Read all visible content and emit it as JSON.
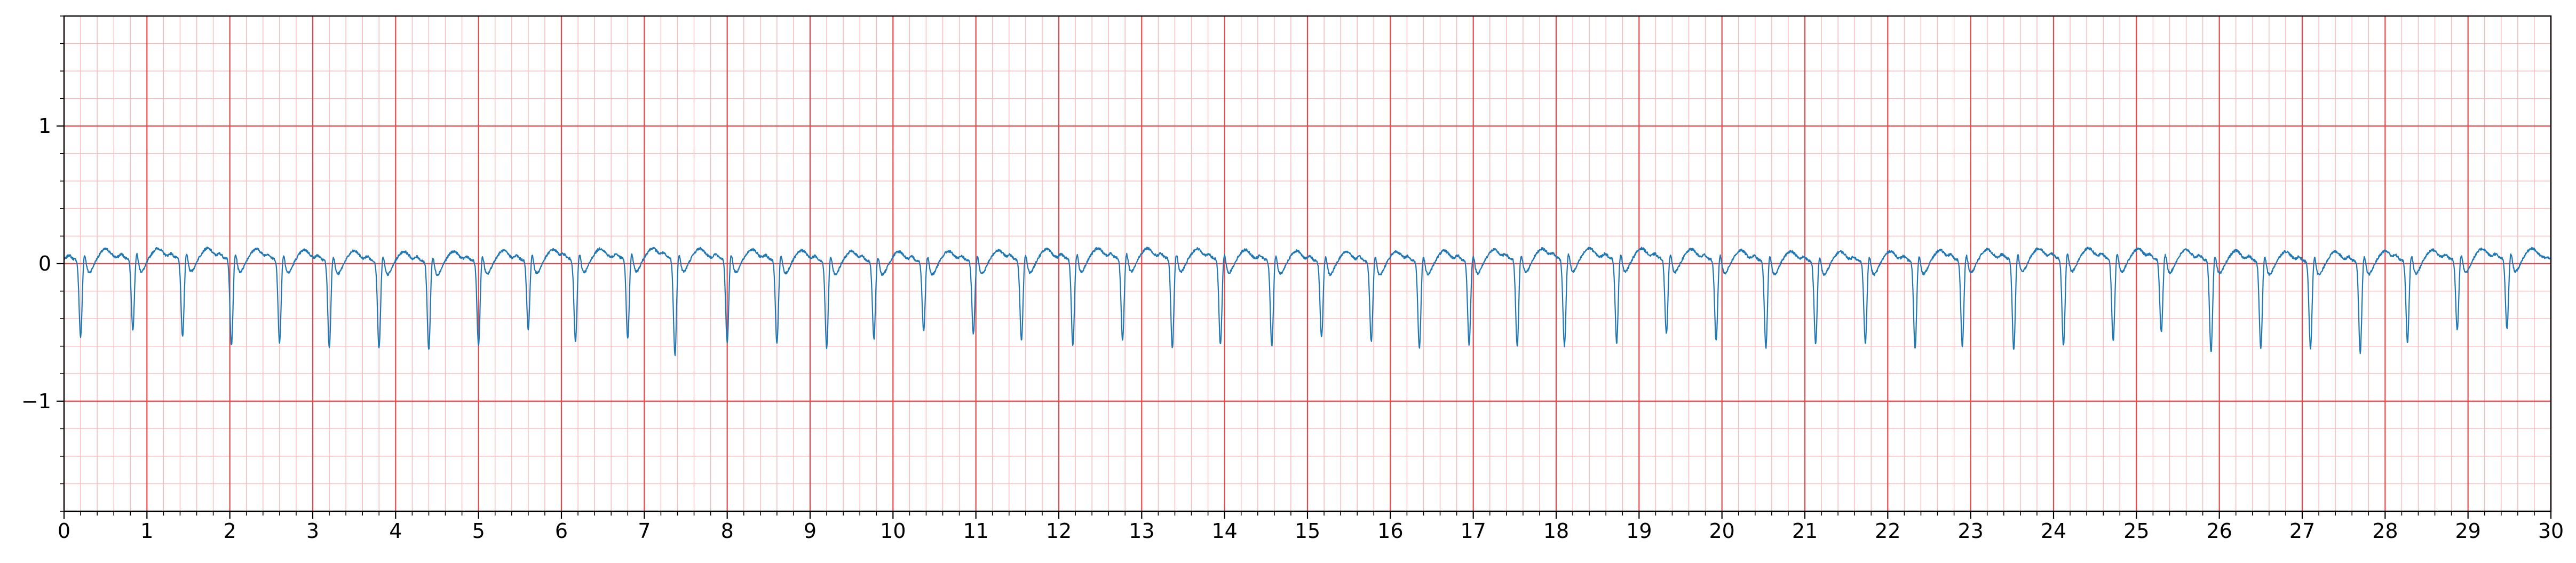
{
  "chart_data": {
    "type": "line",
    "title": "",
    "xlabel": "",
    "ylabel": "",
    "xlim": [
      0,
      30
    ],
    "ylim": [
      -1.8,
      1.8
    ],
    "x_major_step": 1,
    "x_minor_step": 0.2,
    "y_major_step": 1,
    "y_minor_step": 0.2,
    "x_ticks": [
      "0",
      "1",
      "2",
      "3",
      "4",
      "5",
      "6",
      "7",
      "8",
      "9",
      "10",
      "11",
      "12",
      "13",
      "14",
      "15",
      "16",
      "17",
      "18",
      "19",
      "20",
      "21",
      "22",
      "23",
      "24",
      "25",
      "26",
      "27",
      "28",
      "29",
      "30"
    ],
    "y_ticks": [
      {
        "value": 1,
        "label": "1"
      },
      {
        "value": 0,
        "label": "0"
      },
      {
        "value": -1,
        "label": "−1"
      }
    ],
    "grid": true,
    "grid_major_color": "#e8474a",
    "grid_minor_color": "#f7b9b9",
    "line_color": "#1f77b4",
    "series": [
      {
        "beat_times": [
          0.2,
          0.83,
          1.43,
          2.02,
          2.6,
          3.2,
          3.8,
          4.4,
          5.0,
          5.6,
          6.17,
          6.8,
          7.37,
          8.0,
          8.6,
          9.2,
          9.77,
          10.37,
          10.97,
          11.55,
          12.17,
          12.77,
          13.37,
          13.95,
          14.57,
          15.17,
          15.77,
          16.35,
          16.95,
          17.53,
          18.1,
          18.73,
          19.33,
          19.93,
          20.53,
          21.13,
          21.73,
          22.33,
          22.9,
          23.52,
          24.12,
          24.72,
          25.3,
          25.9,
          26.5,
          27.1,
          27.7,
          28.27,
          28.87,
          29.47
        ],
        "beat_amplitudes": [
          -0.53,
          -0.48,
          -0.54,
          -0.6,
          -0.57,
          -0.6,
          -0.6,
          -0.61,
          -0.58,
          -0.47,
          -0.57,
          -0.55,
          -0.67,
          -0.57,
          -0.58,
          -0.6,
          -0.53,
          -0.47,
          -0.5,
          -0.55,
          -0.6,
          -0.56,
          -0.62,
          -0.59,
          -0.59,
          -0.52,
          -0.55,
          -0.6,
          -0.58,
          -0.6,
          -0.6,
          -0.58,
          -0.51,
          -0.56,
          -0.6,
          -0.57,
          -0.56,
          -0.6,
          -0.59,
          -0.63,
          -0.6,
          -0.57,
          -0.5,
          -0.64,
          -0.6,
          -0.6,
          -0.63,
          -0.56,
          -0.48,
          -0.48
        ],
        "baseline": 0.03,
        "t_wave_amplitude": 0.07
      }
    ]
  }
}
